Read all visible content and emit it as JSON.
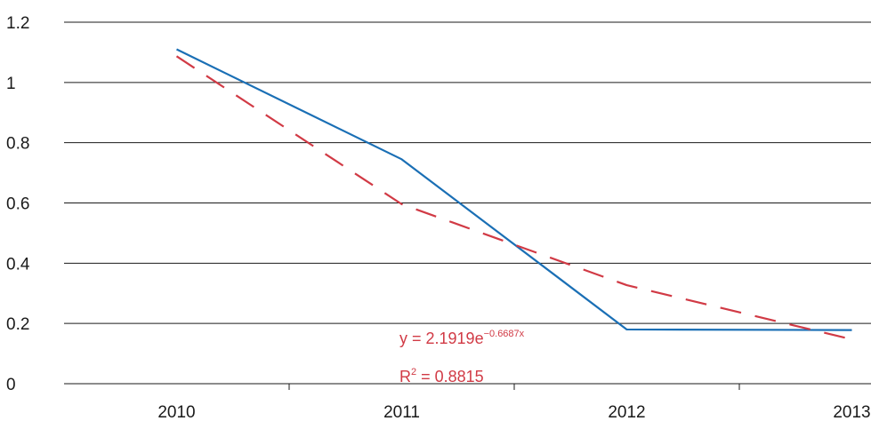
{
  "chart_data": {
    "type": "line",
    "categories": [
      "2010",
      "2011",
      "2012",
      "2013"
    ],
    "x": [
      2010,
      2011,
      2012,
      2013
    ],
    "series": [
      {
        "values": [
          1.11,
          0.745,
          0.18,
          0.178
        ],
        "color": "#1a6fb5",
        "style": "solid"
      },
      {
        "values": [
          1.087,
          0.596,
          0.327,
          0.147
        ],
        "color": "#d13a45",
        "style": "dashed",
        "kind": "exponential-trendline"
      }
    ],
    "ylim": [
      0,
      1.2
    ],
    "yticks": [
      0,
      0.2,
      0.4,
      0.6,
      0.8,
      1,
      1.2
    ],
    "ytick_labels": [
      "0",
      "0.2",
      "0.4",
      "0.6",
      "0.8",
      "1",
      "1.2"
    ],
    "grid": "horizontal",
    "title": "",
    "xlabel": "",
    "ylabel": "",
    "annotation": {
      "equation_prefix": "y = 2.1919e",
      "equation_exponent": "−0.6687x",
      "r_squared_prefix": "R",
      "r_squared_sup": "2",
      "r_squared_suffix": " = 0.8815",
      "color": "#d13a45"
    }
  }
}
